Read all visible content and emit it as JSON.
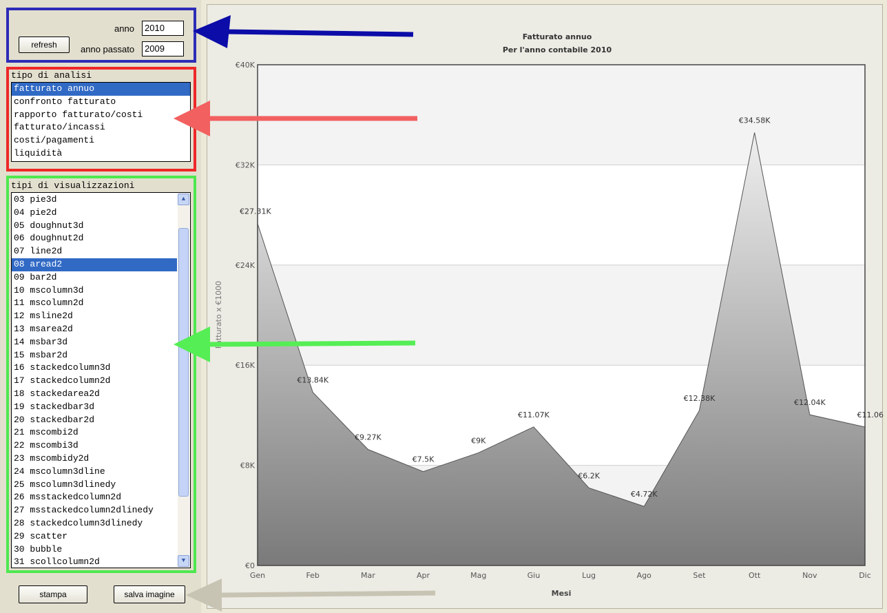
{
  "controls": {
    "anno_label": "anno",
    "anno_value": "2010",
    "anno_passato_label": "anno passato",
    "anno_passato_value": "2009",
    "refresh_label": "refresh"
  },
  "analisi": {
    "title": "tipo di analisi",
    "items": [
      "fatturato annuo",
      "confronto fatturato",
      "rapporto  fatturato/costi",
      "fatturato/incassi",
      "costi/pagamenti",
      "liquidità"
    ],
    "selected": 0
  },
  "visualizzazioni": {
    "title": "tipi di visualizzazioni",
    "items": [
      "03 pie3d",
      "04 pie2d",
      "05 doughnut3d",
      "06 doughnut2d",
      "07 line2d",
      "08 aread2",
      "09 bar2d",
      "10 mscolumn3d",
      "11 mscolumn2d",
      "12 msline2d",
      "13 msarea2d",
      "14 msbar3d",
      "15 msbar2d",
      "16 stackedcolumn3d",
      "17 stackedcolumn2d",
      "18 stackedarea2d",
      "19 stackedbar3d",
      "20 stackedbar2d",
      "21 mscombi2d",
      "22 mscombi3d",
      "23 mscombidy2d",
      "24 mscolumn3dline",
      "25 mscolumn3dlinedy",
      "26 msstackedcolumn2d",
      "27 msstackedcolumn2dlinedy",
      "28 stackedcolumn3dlinedy",
      "29 scatter",
      "30 bubble",
      "31 scollcolumn2d"
    ],
    "selected": 5
  },
  "bottom": {
    "stampa_label": "stampa",
    "salva_label": "salva imagine"
  },
  "colors": {
    "blue_box": "#2c2cb6",
    "red_box": "#ee2828",
    "green_box": "#4fe84f",
    "blue_arrow": "#0c0ca8",
    "red_arrow": "#f26060",
    "green_arrow": "#55ee55",
    "gray_arrow": "#c8c4b4",
    "selection": "#316ac5"
  },
  "chart_data": {
    "type": "area",
    "title": "Fatturato annuo",
    "subtitle": "Per l'anno contabile 2010",
    "xlabel": "Mesi",
    "ylabel": "Fatturato x €1000",
    "categories": [
      "Gen",
      "Feb",
      "Mar",
      "Apr",
      "Mag",
      "Giu",
      "Lug",
      "Ago",
      "Set",
      "Ott",
      "Nov",
      "Dic"
    ],
    "values": [
      27.31,
      13.84,
      9.27,
      7.5,
      9,
      11.07,
      6.2,
      4.72,
      12.38,
      34.58,
      12.04,
      11.06
    ],
    "data_labels": [
      "€27.31K",
      "€13.84K",
      "€9.27K",
      "€7.5K",
      "€9K",
      "€11.07K",
      "€6.2K",
      "€4.72K",
      "€12.38K",
      "€34.58K",
      "€12.04K",
      "€11.06"
    ],
    "ylim": [
      0,
      40
    ],
    "yticks": [
      0,
      8,
      16,
      24,
      32,
      40
    ],
    "ytick_labels": [
      "€0",
      "€8K",
      "€16K",
      "€24K",
      "€32K",
      "€40K"
    ],
    "grid": true,
    "legend": "none"
  }
}
